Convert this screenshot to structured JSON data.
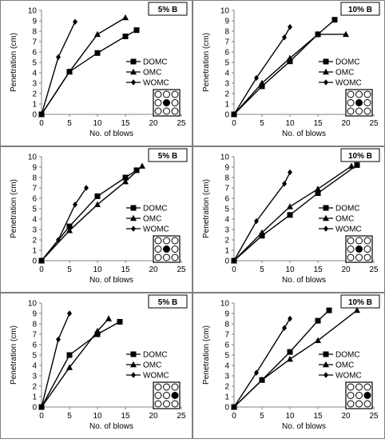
{
  "colors": {
    "line": "#000000",
    "frame": "#7f7f7f",
    "axis": "#808080",
    "tick_text": "#000000"
  },
  "chart_data": [
    {
      "type": "line",
      "panel_label": "5% B",
      "xlabel": "No. of blows",
      "ylabel": "Penetration (cm)",
      "xlim": [
        0,
        25
      ],
      "ylim": [
        0,
        10
      ],
      "xticks": [
        0,
        5,
        10,
        15,
        20,
        25
      ],
      "yticks": [
        0,
        1,
        2,
        3,
        4,
        5,
        6,
        7,
        8,
        9,
        10
      ],
      "legend": "center-right",
      "mold_icon": "mold-center-dark-icon",
      "series": [
        {
          "name": "DOMC",
          "marker": "square",
          "x": [
            0,
            5,
            10,
            15,
            17
          ],
          "y": [
            0,
            4.1,
            5.9,
            7.5,
            8.1
          ]
        },
        {
          "name": "OMC",
          "marker": "triangle",
          "x": [
            0,
            5,
            10,
            15
          ],
          "y": [
            0,
            4.1,
            7.7,
            9.3
          ]
        },
        {
          "name": "WOMC",
          "marker": "diamond",
          "x": [
            0,
            3,
            6
          ],
          "y": [
            0,
            5.5,
            8.9
          ]
        }
      ]
    },
    {
      "type": "line",
      "panel_label": "10%  B",
      "xlabel": "No. of blows",
      "ylabel": "Penetration (cm)",
      "xlim": [
        0,
        25
      ],
      "ylim": [
        0,
        10
      ],
      "xticks": [
        0,
        5,
        10,
        15,
        20,
        25
      ],
      "yticks": [
        0,
        1,
        2,
        3,
        4,
        5,
        6,
        7,
        8,
        9,
        10
      ],
      "legend": "center-right",
      "mold_icon": "mold-center-dark-icon",
      "series": [
        {
          "name": "DOMC",
          "marker": "square",
          "x": [
            0,
            5,
            10,
            15,
            18
          ],
          "y": [
            0,
            2.7,
            5.1,
            7.7,
            9.1
          ]
        },
        {
          "name": "OMC",
          "marker": "triangle",
          "x": [
            0,
            5,
            10,
            15,
            20
          ],
          "y": [
            0,
            3.0,
            5.4,
            7.7,
            7.7
          ]
        },
        {
          "name": "WOMC",
          "marker": "diamond",
          "x": [
            0,
            4,
            9,
            10
          ],
          "y": [
            0,
            3.5,
            7.4,
            8.4
          ]
        }
      ]
    },
    {
      "type": "line",
      "panel_label": "5% B",
      "xlabel": "No. of blows",
      "ylabel": "Penetration (cm)",
      "xlim": [
        0,
        25
      ],
      "ylim": [
        0,
        10
      ],
      "xticks": [
        0,
        5,
        10,
        15,
        20,
        25
      ],
      "yticks": [
        0,
        1,
        2,
        3,
        4,
        5,
        6,
        7,
        8,
        9,
        10
      ],
      "legend": "center-right",
      "mold_icon": "mold-middle-right-dark-icon",
      "series": [
        {
          "name": "DOMC",
          "marker": "square",
          "x": [
            0,
            5,
            10,
            15,
            17
          ],
          "y": [
            0,
            3.3,
            6.2,
            8.0,
            8.7
          ]
        },
        {
          "name": "OMC",
          "marker": "triangle",
          "x": [
            0,
            5,
            10,
            15,
            18
          ],
          "y": [
            0,
            2.9,
            5.4,
            7.6,
            9.1
          ]
        },
        {
          "name": "WOMC",
          "marker": "diamond",
          "x": [
            0,
            3,
            6,
            8
          ],
          "y": [
            0,
            2.0,
            5.4,
            7.0
          ]
        }
      ]
    },
    {
      "type": "line",
      "panel_label": "10% B",
      "xlabel": "No. of blows",
      "ylabel": "Penetration (cm)",
      "xlim": [
        0,
        25
      ],
      "ylim": [
        0,
        10
      ],
      "xticks": [
        0,
        5,
        10,
        15,
        20,
        25
      ],
      "yticks": [
        0,
        1,
        2,
        3,
        4,
        5,
        6,
        7,
        8,
        9,
        10
      ],
      "legend": "center-right",
      "mold_icon": "mold-middle-right-dark-icon",
      "series": [
        {
          "name": "DOMC",
          "marker": "square",
          "x": [
            0,
            5,
            10,
            15,
            22
          ],
          "y": [
            0,
            2.4,
            4.4,
            6.5,
            9.2
          ]
        },
        {
          "name": "OMC",
          "marker": "triangle",
          "x": [
            0,
            5,
            10,
            15,
            21
          ],
          "y": [
            0,
            2.7,
            5.2,
            6.9,
            9.1
          ]
        },
        {
          "name": "WOMC",
          "marker": "diamond",
          "x": [
            0,
            4,
            9,
            10
          ],
          "y": [
            0,
            3.8,
            7.4,
            8.5
          ]
        }
      ]
    },
    {
      "type": "line",
      "panel_label": "5% B",
      "xlabel": "No. of blows",
      "ylabel": "Penetration (cm)",
      "xlim": [
        0,
        25
      ],
      "ylim": [
        0,
        10
      ],
      "xticks": [
        0,
        5,
        10,
        15,
        20,
        25
      ],
      "yticks": [
        0,
        1,
        2,
        3,
        4,
        5,
        6,
        7,
        8,
        9,
        10
      ],
      "legend": "center-right",
      "mold_icon": "mold-edge-dark-icon",
      "series": [
        {
          "name": "DOMC",
          "marker": "square",
          "x": [
            0,
            5,
            10,
            14
          ],
          "y": [
            0,
            5.0,
            7.0,
            8.2
          ]
        },
        {
          "name": "OMC",
          "marker": "triangle",
          "x": [
            0,
            5,
            10,
            12
          ],
          "y": [
            0,
            3.8,
            7.3,
            8.5
          ]
        },
        {
          "name": "WOMC",
          "marker": "diamond",
          "x": [
            0,
            3,
            5
          ],
          "y": [
            0,
            6.5,
            9.0
          ]
        }
      ]
    },
    {
      "type": "line",
      "panel_label": "10% B",
      "xlabel": "No. of blows",
      "ylabel": "Penetration (cm)",
      "xlim": [
        0,
        25
      ],
      "ylim": [
        0,
        10
      ],
      "xticks": [
        0,
        5,
        10,
        15,
        20,
        25
      ],
      "yticks": [
        0,
        1,
        2,
        3,
        4,
        5,
        6,
        7,
        8,
        9,
        10
      ],
      "legend": "center-right",
      "mold_icon": "mold-edge-dark-icon",
      "series": [
        {
          "name": "DOMC",
          "marker": "square",
          "x": [
            0,
            5,
            10,
            15,
            17
          ],
          "y": [
            0,
            2.6,
            5.3,
            8.3,
            9.3
          ]
        },
        {
          "name": "OMC",
          "marker": "triangle",
          "x": [
            0,
            5,
            10,
            15,
            22
          ],
          "y": [
            0,
            2.6,
            4.6,
            6.4,
            9.3
          ]
        },
        {
          "name": "WOMC",
          "marker": "diamond",
          "x": [
            0,
            4,
            9,
            10
          ],
          "y": [
            0,
            3.3,
            7.6,
            8.5
          ]
        }
      ]
    }
  ]
}
